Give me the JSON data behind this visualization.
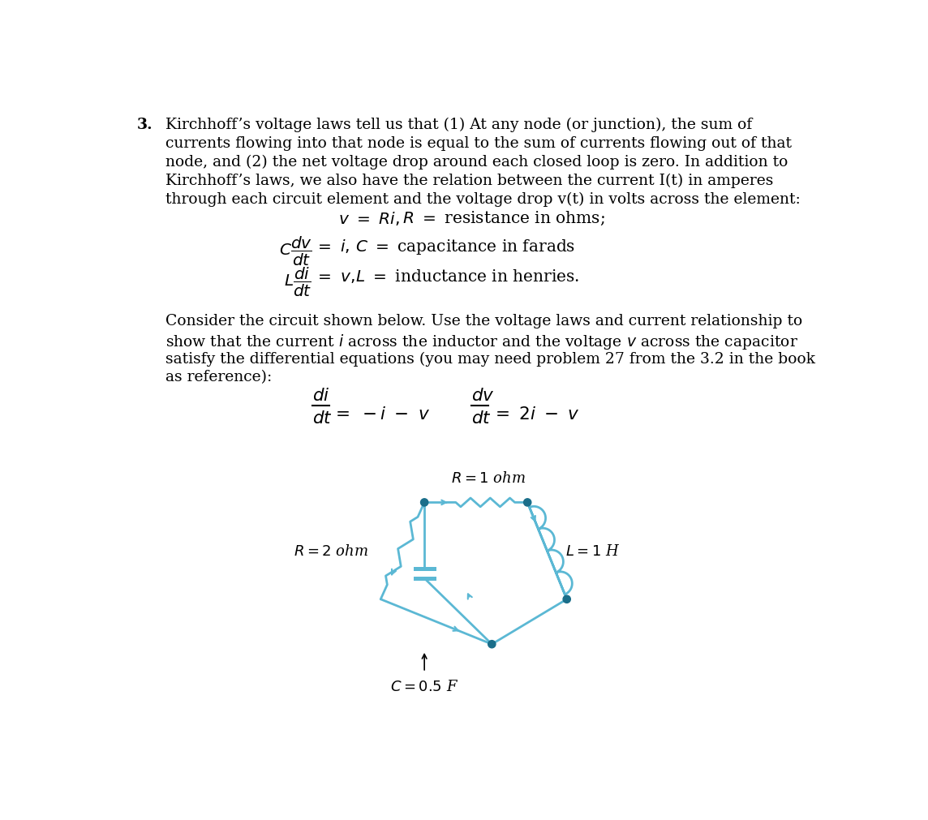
{
  "bg_color": "#ffffff",
  "text_color": "#000000",
  "circuit_color": "#5bb8d4",
  "node_color": "#1a6e8a",
  "font_size_body": 13.5,
  "font_size_eq": 14.5,
  "font_size_circuit": 13,
  "title_number": "3.",
  "p1_line1": "Kirchhoff’s voltage laws tell us that (1) At any node (or junction), the sum of",
  "p1_line2": "currents flowing into that node is equal to the sum of currents flowing out of that",
  "p1_line3": "node, and (2) the net voltage drop around each closed loop is zero. In addition to",
  "p1_line4": "Kirchhoff’s laws, we also have the relation between the current I(t) in amperes",
  "p1_line5": "through each circuit element and the voltage drop v(t) in volts across the element:",
  "p2_line1": "Consider the circuit shown below. Use the voltage laws and current relationship to",
  "p2_line2": "show that the current $i$ across the inductor and the voltage $v$ across the capacitor",
  "p2_line3": "satisfy the differential equations (you may need problem 27 from the 3.2 in the book",
  "p2_line4": "as reference):",
  "label_R1": "$R = 1$ ohm",
  "label_R2": "$R = 2$ ohm",
  "label_L": "$L = 1$ H",
  "label_C": "$C = 0.5$ F"
}
